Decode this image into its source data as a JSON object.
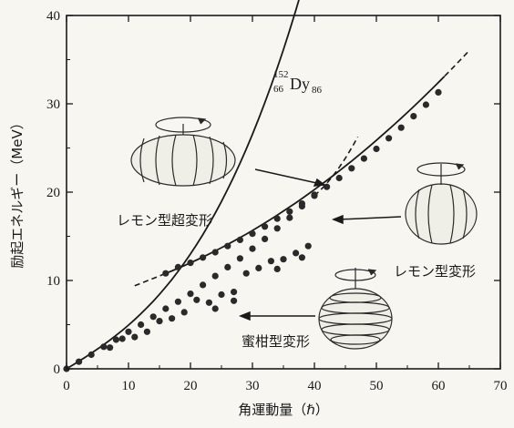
{
  "chart_data": {
    "type": "scatter",
    "xlabel": "角運動量（ℏ）",
    "ylabel": "励起エネルギー（MeV）",
    "xlim": [
      0,
      70
    ],
    "ylim": [
      0,
      40
    ],
    "x_ticks": [
      "0",
      "10",
      "20",
      "30",
      "40",
      "50",
      "60",
      "70"
    ],
    "y_ticks": [
      "0",
      "10",
      "20",
      "30",
      "40"
    ],
    "nucleus": {
      "symbol": "Dy",
      "mass_number": "152",
      "proton_number": "66",
      "neutron_number": "86"
    },
    "annotations": {
      "superdeformed": "レモン型超変形",
      "deformed": "レモン型変形",
      "oblate": "蜜柑型変形"
    },
    "series": [
      {
        "values": [
          [
            0,
            0
          ],
          [
            2,
            0.8
          ],
          [
            4,
            1.6
          ],
          [
            6,
            2.5
          ],
          [
            8,
            3.3
          ],
          [
            10,
            4.2
          ],
          [
            12,
            5.0
          ],
          [
            14,
            5.9
          ],
          [
            16,
            6.8
          ],
          [
            18,
            7.6
          ],
          [
            20,
            8.5
          ],
          [
            22,
            9.5
          ],
          [
            24,
            10.5
          ],
          [
            26,
            11.5
          ],
          [
            28,
            12.5
          ],
          [
            30,
            13.6
          ],
          [
            32,
            14.7
          ],
          [
            34,
            15.9
          ],
          [
            36,
            17.1
          ],
          [
            38,
            18.4
          ],
          [
            40,
            19.7
          ]
        ]
      },
      {
        "values": [
          [
            7,
            2.4
          ],
          [
            9,
            3.4
          ],
          [
            11,
            3.6
          ],
          [
            13,
            4.2
          ],
          [
            15,
            5.4
          ],
          [
            17,
            5.7
          ],
          [
            19,
            6.4
          ],
          [
            21,
            7.8
          ],
          [
            23,
            7.5
          ],
          [
            25,
            8.4
          ],
          [
            27,
            8.7
          ],
          [
            29,
            10.8
          ],
          [
            31,
            11.4
          ],
          [
            33,
            12.2
          ],
          [
            35,
            12.4
          ],
          [
            37,
            13.1
          ],
          [
            39,
            13.9
          ],
          [
            24,
            6.8
          ],
          [
            27,
            7.7
          ],
          [
            34,
            11.3
          ],
          [
            38,
            12.6
          ]
        ]
      },
      {
        "values": [
          [
            16,
            10.8
          ],
          [
            18,
            11.5
          ],
          [
            20,
            12.0
          ],
          [
            22,
            12.6
          ],
          [
            24,
            13.2
          ],
          [
            26,
            13.9
          ],
          [
            28,
            14.6
          ],
          [
            30,
            15.3
          ],
          [
            32,
            16.1
          ],
          [
            34,
            17.0
          ],
          [
            36,
            17.8
          ],
          [
            38,
            18.7
          ],
          [
            40,
            19.6
          ],
          [
            42,
            20.6
          ],
          [
            44,
            21.6
          ],
          [
            46,
            22.7
          ],
          [
            48,
            23.8
          ],
          [
            50,
            24.9
          ],
          [
            52,
            26.1
          ],
          [
            54,
            27.3
          ],
          [
            56,
            28.6
          ],
          [
            58,
            29.9
          ],
          [
            60,
            31.3
          ]
        ]
      }
    ]
  }
}
